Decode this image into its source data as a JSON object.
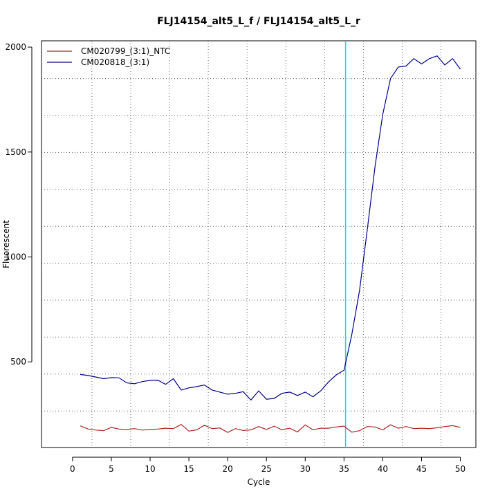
{
  "chart_data": {
    "type": "line",
    "title": "FLJ14154_alt5_L_f / FLJ14154_alt5_L_r",
    "xlabel": "Cycle",
    "ylabel": "Fluorescent",
    "xlim": [
      -4,
      52
    ],
    "ylim": [
      92,
      2030
    ],
    "x_ticks": [
      "0",
      "5",
      "10",
      "15",
      "20",
      "25",
      "30",
      "35",
      "40",
      "45",
      "50"
    ],
    "y_ticks": [
      "500",
      "1000",
      "1500",
      "2000"
    ],
    "grid": true,
    "threshold_cycle": 35.2,
    "threshold_color": "#00e5e5",
    "legend_position": "top-left",
    "x": [
      1,
      2,
      3,
      4,
      5,
      6,
      7,
      8,
      9,
      10,
      11,
      12,
      13,
      14,
      15,
      16,
      17,
      18,
      19,
      20,
      21,
      22,
      23,
      24,
      25,
      26,
      27,
      28,
      29,
      30,
      31,
      32,
      33,
      34,
      35,
      36,
      37,
      38,
      39,
      40,
      41,
      42,
      43,
      44,
      45,
      46,
      47,
      48,
      49,
      50
    ],
    "series": [
      {
        "name": "CM020799_(3:1)_NTC",
        "color": "#b22222",
        "values": [
          195,
          180,
          175,
          172,
          188,
          180,
          178,
          182,
          175,
          178,
          180,
          184,
          182,
          202,
          170,
          176,
          198,
          182,
          185,
          164,
          182,
          173,
          176,
          192,
          178,
          194,
          176,
          184,
          166,
          200,
          176,
          184,
          184,
          190,
          194,
          165,
          172,
          192,
          190,
          176,
          200,
          184,
          192,
          182,
          184,
          182,
          186,
          192,
          196,
          188
        ]
      },
      {
        "name": "CM020818_(3:1)",
        "color": "#00008b",
        "values": [
          440,
          435,
          428,
          420,
          425,
          424,
          400,
          396,
          406,
          412,
          413,
          393,
          420,
          366,
          376,
          382,
          390,
          366,
          356,
          346,
          350,
          358,
          318,
          362,
          322,
          326,
          350,
          356,
          340,
          356,
          334,
          362,
          404,
          438,
          460,
          630,
          840,
          1130,
          1430,
          1680,
          1850,
          1905,
          1910,
          1945,
          1920,
          1945,
          1958,
          1915,
          1945,
          1895
        ]
      }
    ]
  }
}
